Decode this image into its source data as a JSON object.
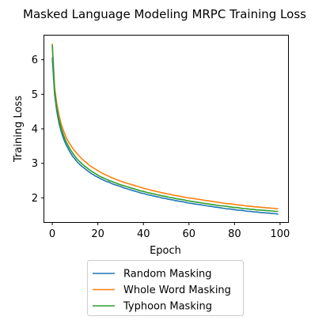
{
  "chart_data": {
    "type": "line",
    "title": "Masked Language Modeling MRPC Training Loss",
    "xlabel": "Epoch",
    "ylabel": "Training Loss",
    "xlim": [
      -3.5,
      103.5
    ],
    "ylim": [
      1.3,
      6.7
    ],
    "xticks": [
      0,
      20,
      40,
      60,
      80,
      100
    ],
    "yticks": [
      2,
      3,
      4,
      5,
      6
    ],
    "grid": false,
    "legend_position": "below the plot",
    "x": [
      0,
      1,
      2,
      3,
      4,
      5,
      6,
      7,
      8,
      9,
      10,
      11,
      12,
      13,
      14,
      15,
      16,
      17,
      18,
      19,
      20,
      21,
      22,
      23,
      24,
      25,
      26,
      27,
      28,
      29,
      30,
      31,
      32,
      33,
      34,
      35,
      36,
      37,
      38,
      39,
      40,
      41,
      42,
      43,
      44,
      45,
      46,
      47,
      48,
      49,
      50,
      51,
      52,
      53,
      54,
      55,
      56,
      57,
      58,
      59,
      60,
      61,
      62,
      63,
      64,
      65,
      66,
      67,
      68,
      69,
      70,
      71,
      72,
      73,
      74,
      75,
      76,
      77,
      78,
      79,
      80,
      81,
      82,
      83,
      84,
      85,
      86,
      87,
      88,
      89,
      90,
      91,
      92,
      93,
      94,
      95,
      96,
      97,
      98,
      99
    ],
    "series": [
      {
        "name": "Random Masking",
        "color": "#1f77b4",
        "values": [
          6.05,
          5.0,
          4.5,
          4.15,
          3.9,
          3.7,
          3.55,
          3.42,
          3.3,
          3.2,
          3.12,
          3.04,
          2.97,
          2.91,
          2.86,
          2.81,
          2.76,
          2.71,
          2.67,
          2.63,
          2.6,
          2.56,
          2.53,
          2.5,
          2.47,
          2.45,
          2.42,
          2.39,
          2.37,
          2.35,
          2.33,
          2.3,
          2.28,
          2.26,
          2.24,
          2.22,
          2.2,
          2.18,
          2.16,
          2.14,
          2.13,
          2.11,
          2.09,
          2.08,
          2.06,
          2.05,
          2.03,
          2.02,
          2.0,
          1.99,
          1.98,
          1.96,
          1.95,
          1.94,
          1.92,
          1.91,
          1.9,
          1.89,
          1.88,
          1.86,
          1.85,
          1.84,
          1.83,
          1.82,
          1.81,
          1.8,
          1.79,
          1.78,
          1.77,
          1.76,
          1.75,
          1.74,
          1.73,
          1.72,
          1.71,
          1.7,
          1.69,
          1.68,
          1.68,
          1.67,
          1.66,
          1.65,
          1.64,
          1.64,
          1.63,
          1.62,
          1.61,
          1.61,
          1.6,
          1.59,
          1.59,
          1.58,
          1.57,
          1.57,
          1.56,
          1.56,
          1.55,
          1.55,
          1.54,
          1.53
        ]
      },
      {
        "name": "Whole Word Masking",
        "color": "#ff7f0e",
        "values": [
          6.45,
          5.2,
          4.72,
          4.38,
          4.12,
          3.93,
          3.77,
          3.64,
          3.53,
          3.43,
          3.35,
          3.27,
          3.2,
          3.13,
          3.07,
          3.02,
          2.96,
          2.91,
          2.87,
          2.83,
          2.79,
          2.75,
          2.71,
          2.68,
          2.65,
          2.62,
          2.59,
          2.56,
          2.53,
          2.51,
          2.48,
          2.46,
          2.44,
          2.42,
          2.4,
          2.38,
          2.36,
          2.34,
          2.32,
          2.3,
          2.28,
          2.26,
          2.25,
          2.23,
          2.21,
          2.2,
          2.18,
          2.17,
          2.15,
          2.14,
          2.12,
          2.11,
          2.1,
          2.08,
          2.07,
          2.06,
          2.05,
          2.03,
          2.02,
          2.01,
          2.0,
          1.99,
          1.98,
          1.97,
          1.96,
          1.95,
          1.94,
          1.93,
          1.92,
          1.91,
          1.9,
          1.89,
          1.88,
          1.87,
          1.86,
          1.85,
          1.84,
          1.83,
          1.83,
          1.82,
          1.81,
          1.8,
          1.79,
          1.79,
          1.78,
          1.77,
          1.76,
          1.76,
          1.75,
          1.74,
          1.74,
          1.73,
          1.72,
          1.72,
          1.71,
          1.71,
          1.7,
          1.7,
          1.69,
          1.69
        ]
      },
      {
        "name": "Typhoon Masking",
        "color": "#2ca02c",
        "values": [
          6.42,
          5.1,
          4.6,
          4.25,
          4.0,
          3.8,
          3.64,
          3.51,
          3.39,
          3.29,
          3.2,
          3.12,
          3.05,
          2.99,
          2.93,
          2.88,
          2.83,
          2.78,
          2.74,
          2.7,
          2.66,
          2.62,
          2.59,
          2.56,
          2.53,
          2.5,
          2.48,
          2.45,
          2.43,
          2.4,
          2.38,
          2.36,
          2.34,
          2.32,
          2.3,
          2.28,
          2.26,
          2.24,
          2.22,
          2.2,
          2.19,
          2.17,
          2.15,
          2.14,
          2.12,
          2.11,
          2.09,
          2.08,
          2.06,
          2.05,
          2.04,
          2.02,
          2.01,
          2.0,
          1.98,
          1.97,
          1.96,
          1.95,
          1.94,
          1.92,
          1.91,
          1.9,
          1.89,
          1.88,
          1.87,
          1.86,
          1.85,
          1.84,
          1.83,
          1.82,
          1.81,
          1.8,
          1.79,
          1.78,
          1.77,
          1.77,
          1.76,
          1.75,
          1.74,
          1.73,
          1.72,
          1.72,
          1.71,
          1.7,
          1.69,
          1.69,
          1.68,
          1.67,
          1.67,
          1.66,
          1.65,
          1.65,
          1.64,
          1.64,
          1.63,
          1.63,
          1.62,
          1.62,
          1.61,
          1.61
        ]
      }
    ]
  }
}
